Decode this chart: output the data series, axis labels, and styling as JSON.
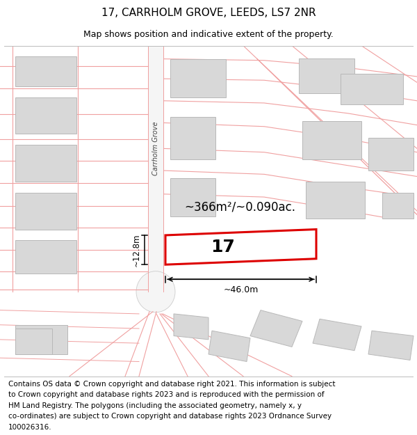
{
  "title": "17, CARRHOLM GROVE, LEEDS, LS7 2NR",
  "subtitle": "Map shows position and indicative extent of the property.",
  "footer_lines": [
    "Contains OS data © Crown copyright and database right 2021. This information is subject",
    "to Crown copyright and database rights 2023 and is reproduced with the permission of",
    "HM Land Registry. The polygons (including the associated geometry, namely x, y",
    "co-ordinates) are subject to Crown copyright and database rights 2023 Ordnance Survey",
    "100026316."
  ],
  "area_label": "~366m²/~0.090ac.",
  "width_label": "~46.0m",
  "height_label": "~12.8m",
  "plot_number": "17",
  "bg_color": "#ffffff",
  "road_line_color": "#f0a0a0",
  "building_color": "#d8d8d8",
  "building_edge": "#b8b8b8",
  "plot_outline_color": "#dd0000",
  "street_label": "Carrholm Grove",
  "title_fontsize": 11,
  "subtitle_fontsize": 9,
  "footer_fontsize": 7.5,
  "map_xlim": [
    0,
    600
  ],
  "map_ylim": [
    0,
    450
  ]
}
